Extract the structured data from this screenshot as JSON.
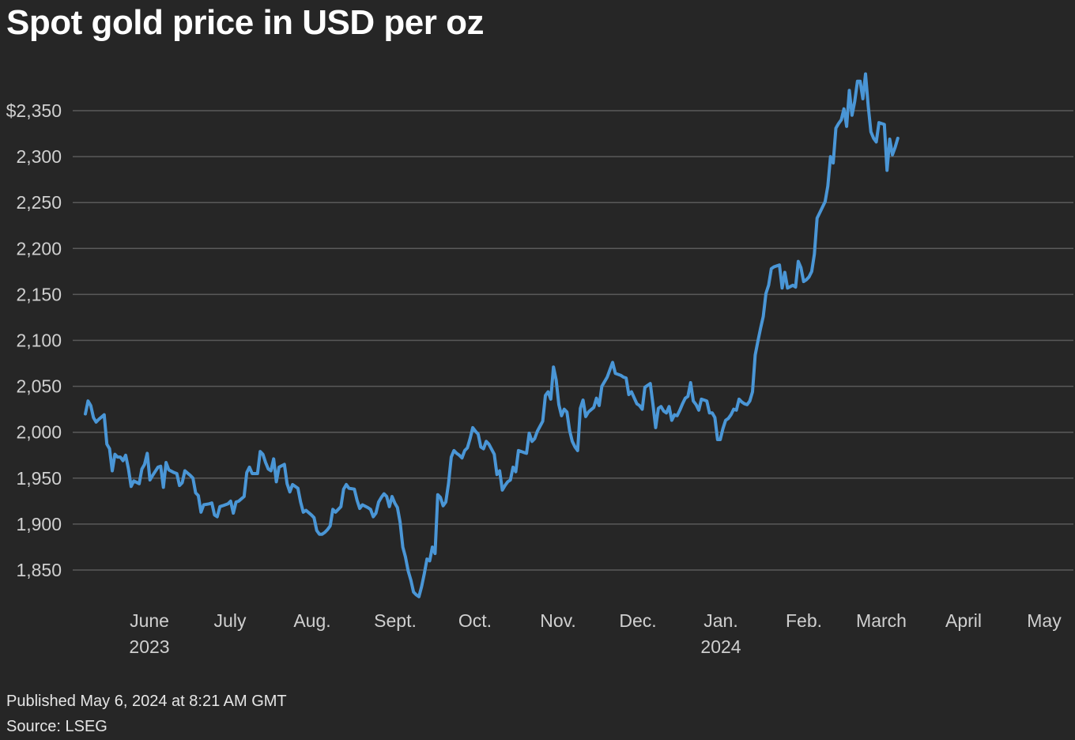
{
  "chart_data": {
    "type": "line",
    "title": "Spot gold price in USD per oz",
    "xlabel": "",
    "ylabel": "",
    "ylim": [
      1800,
      2400
    ],
    "yticks": [
      1850,
      1900,
      1950,
      2000,
      2050,
      2100,
      2150,
      2200,
      2250,
      2300,
      2350
    ],
    "ytick_labels": [
      "1,850",
      "1,900",
      "1,950",
      "2,000",
      "2,050",
      "2,100",
      "2,150",
      "2,200",
      "2,250",
      "2,300",
      "$2,350"
    ],
    "grid": true,
    "line_color": "#4a96d6",
    "xtick_labels": [
      {
        "label": "June",
        "year": "2023",
        "day_index": 22
      },
      {
        "label": "July",
        "year": "",
        "day_index": 52
      },
      {
        "label": "Aug.",
        "year": "",
        "day_index": 83
      },
      {
        "label": "Sept.",
        "year": "",
        "day_index": 114
      },
      {
        "label": "Oct.",
        "year": "",
        "day_index": 144
      },
      {
        "label": "Nov.",
        "year": "",
        "day_index": 175
      },
      {
        "label": "Dec.",
        "year": "",
        "day_index": 205
      },
      {
        "label": "Jan.",
        "year": "2024",
        "day_index": 236
      },
      {
        "label": "Feb.",
        "year": "",
        "day_index": 267
      },
      {
        "label": "March",
        "year": "",
        "day_index": 296
      },
      {
        "label": "April",
        "year": "",
        "day_index": 327
      },
      {
        "label": "May",
        "year": "",
        "day_index": 357
      }
    ],
    "x_start": "2023-05-10",
    "x_end": "2024-05-06",
    "x_range_days": [
      0,
      362
    ],
    "series": [
      {
        "name": "Spot gold",
        "points": [
          [
            0,
            2020
          ],
          [
            1,
            2034
          ],
          [
            2,
            2029
          ],
          [
            3,
            2016
          ],
          [
            4,
            2011
          ],
          [
            5,
            2014
          ],
          [
            7,
            2019
          ],
          [
            8,
            1987
          ],
          [
            9,
            1982
          ],
          [
            10,
            1958
          ],
          [
            11,
            1976
          ],
          [
            12,
            1973
          ],
          [
            13,
            1973
          ],
          [
            14,
            1969
          ],
          [
            15,
            1975
          ],
          [
            16,
            1960
          ],
          [
            17,
            1941
          ],
          [
            18,
            1947
          ],
          [
            20,
            1944
          ],
          [
            21,
            1960
          ],
          [
            22,
            1965
          ],
          [
            23,
            1977
          ],
          [
            24,
            1948
          ],
          [
            25,
            1953
          ],
          [
            27,
            1962
          ],
          [
            28,
            1963
          ],
          [
            29,
            1940
          ],
          [
            30,
            1967
          ],
          [
            31,
            1959
          ],
          [
            33,
            1956
          ],
          [
            34,
            1955
          ],
          [
            35,
            1942
          ],
          [
            36,
            1945
          ],
          [
            37,
            1958
          ],
          [
            39,
            1953
          ],
          [
            40,
            1950
          ],
          [
            41,
            1934
          ],
          [
            42,
            1931
          ],
          [
            43,
            1913
          ],
          [
            44,
            1921
          ],
          [
            46,
            1922
          ],
          [
            47,
            1923
          ],
          [
            48,
            1910
          ],
          [
            49,
            1908
          ],
          [
            50,
            1919
          ],
          [
            51,
            1920
          ],
          [
            53,
            1922
          ],
          [
            54,
            1925
          ],
          [
            55,
            1912
          ],
          [
            56,
            1924
          ],
          [
            57,
            1925
          ],
          [
            59,
            1930
          ],
          [
            60,
            1956
          ],
          [
            61,
            1962
          ],
          [
            62,
            1955
          ],
          [
            64,
            1955
          ],
          [
            65,
            1979
          ],
          [
            66,
            1976
          ],
          [
            67,
            1967
          ],
          [
            68,
            1960
          ],
          [
            69,
            1958
          ],
          [
            70,
            1971
          ],
          [
            71,
            1946
          ],
          [
            72,
            1962
          ],
          [
            74,
            1965
          ],
          [
            75,
            1944
          ],
          [
            76,
            1935
          ],
          [
            77,
            1943
          ],
          [
            79,
            1939
          ],
          [
            80,
            1924
          ],
          [
            81,
            1913
          ],
          [
            82,
            1915
          ],
          [
            84,
            1910
          ],
          [
            85,
            1907
          ],
          [
            86,
            1893
          ],
          [
            87,
            1889
          ],
          [
            88,
            1889
          ],
          [
            89,
            1891
          ],
          [
            90,
            1894
          ],
          [
            91,
            1898
          ],
          [
            92,
            1916
          ],
          [
            93,
            1913
          ],
          [
            95,
            1919
          ],
          [
            96,
            1938
          ],
          [
            97,
            1943
          ],
          [
            98,
            1939
          ],
          [
            100,
            1938
          ],
          [
            101,
            1926
          ],
          [
            102,
            1917
          ],
          [
            103,
            1921
          ],
          [
            105,
            1918
          ],
          [
            106,
            1916
          ],
          [
            107,
            1908
          ],
          [
            108,
            1912
          ],
          [
            109,
            1924
          ],
          [
            110,
            1929
          ],
          [
            111,
            1933
          ],
          [
            112,
            1930
          ],
          [
            113,
            1919
          ],
          [
            114,
            1930
          ],
          [
            115,
            1923
          ],
          [
            116,
            1918
          ],
          [
            117,
            1902
          ],
          [
            118,
            1875
          ],
          [
            119,
            1864
          ],
          [
            120,
            1849
          ],
          [
            121,
            1839
          ],
          [
            122,
            1826
          ],
          [
            123,
            1823
          ],
          [
            124,
            1821
          ],
          [
            125,
            1832
          ],
          [
            126,
            1846
          ],
          [
            127,
            1862
          ],
          [
            128,
            1860
          ],
          [
            129,
            1875
          ],
          [
            130,
            1868
          ],
          [
            131,
            1932
          ],
          [
            132,
            1929
          ],
          [
            133,
            1920
          ],
          [
            134,
            1924
          ],
          [
            135,
            1944
          ],
          [
            136,
            1973
          ],
          [
            137,
            1980
          ],
          [
            138,
            1977
          ],
          [
            139,
            1975
          ],
          [
            140,
            1972
          ],
          [
            141,
            1980
          ],
          [
            142,
            1983
          ],
          [
            143,
            1993
          ],
          [
            144,
            2005
          ],
          [
            145,
            2001
          ],
          [
            146,
            1998
          ],
          [
            147,
            1984
          ],
          [
            148,
            1982
          ],
          [
            149,
            1990
          ],
          [
            150,
            1987
          ],
          [
            152,
            1976
          ],
          [
            153,
            1954
          ],
          [
            154,
            1958
          ],
          [
            155,
            1937
          ],
          [
            156,
            1942
          ],
          [
            157,
            1946
          ],
          [
            158,
            1948
          ],
          [
            159,
            1962
          ],
          [
            160,
            1957
          ],
          [
            161,
            1980
          ],
          [
            163,
            1978
          ],
          [
            164,
            1977
          ],
          [
            165,
            1999
          ],
          [
            166,
            1990
          ],
          [
            167,
            1993
          ],
          [
            168,
            2001
          ],
          [
            170,
            2012
          ],
          [
            171,
            2040
          ],
          [
            172,
            2044
          ],
          [
            173,
            2036
          ],
          [
            174,
            2071
          ],
          [
            175,
            2057
          ],
          [
            176,
            2030
          ],
          [
            177,
            2018
          ],
          [
            178,
            2025
          ],
          [
            179,
            2022
          ],
          [
            180,
            2002
          ],
          [
            181,
            1990
          ],
          [
            182,
            1984
          ],
          [
            183,
            1980
          ],
          [
            184,
            2026
          ],
          [
            185,
            2035
          ],
          [
            186,
            2017
          ],
          [
            187,
            2022
          ],
          [
            189,
            2027
          ],
          [
            190,
            2037
          ],
          [
            191,
            2029
          ],
          [
            192,
            2050
          ],
          [
            194,
            2060
          ],
          [
            195,
            2068
          ],
          [
            196,
            2076
          ],
          [
            197,
            2064
          ],
          [
            198,
            2063
          ],
          [
            199,
            2062
          ],
          [
            200,
            2060
          ],
          [
            201,
            2059
          ],
          [
            202,
            2041
          ],
          [
            203,
            2044
          ],
          [
            205,
            2031
          ],
          [
            206,
            2029
          ],
          [
            207,
            2025
          ],
          [
            208,
            2049
          ],
          [
            210,
            2053
          ],
          [
            211,
            2030
          ],
          [
            212,
            2005
          ],
          [
            213,
            2026
          ],
          [
            214,
            2028
          ],
          [
            215,
            2023
          ],
          [
            216,
            2021
          ],
          [
            217,
            2028
          ],
          [
            218,
            2013
          ],
          [
            219,
            2019
          ],
          [
            220,
            2018
          ],
          [
            221,
            2024
          ],
          [
            222,
            2031
          ],
          [
            223,
            2037
          ],
          [
            224,
            2039
          ],
          [
            225,
            2054
          ],
          [
            226,
            2034
          ],
          [
            227,
            2030
          ],
          [
            228,
            2024
          ],
          [
            229,
            2036
          ],
          [
            230,
            2035
          ],
          [
            231,
            2034
          ],
          [
            232,
            2021
          ],
          [
            233,
            2021
          ],
          [
            234,
            2016
          ],
          [
            235,
            1992
          ],
          [
            236,
            1992
          ],
          [
            237,
            2004
          ],
          [
            238,
            2013
          ],
          [
            239,
            2015
          ],
          [
            240,
            2019
          ],
          [
            241,
            2025
          ],
          [
            242,
            2024
          ],
          [
            243,
            2036
          ],
          [
            244,
            2033
          ],
          [
            245,
            2031
          ],
          [
            246,
            2030
          ],
          [
            247,
            2034
          ],
          [
            248,
            2044
          ],
          [
            249,
            2084
          ],
          [
            250,
            2099
          ],
          [
            251,
            2113
          ],
          [
            252,
            2126
          ],
          [
            253,
            2151
          ],
          [
            254,
            2160
          ],
          [
            255,
            2178
          ],
          [
            256,
            2180
          ],
          [
            258,
            2182
          ],
          [
            259,
            2157
          ],
          [
            260,
            2174
          ],
          [
            261,
            2157
          ],
          [
            263,
            2160
          ],
          [
            264,
            2158
          ],
          [
            265,
            2186
          ],
          [
            266,
            2179
          ],
          [
            267,
            2164
          ],
          [
            268,
            2166
          ],
          [
            269,
            2169
          ],
          [
            270,
            2175
          ],
          [
            271,
            2194
          ],
          [
            272,
            2233
          ],
          [
            273,
            2239
          ],
          [
            274,
            2245
          ],
          [
            275,
            2251
          ],
          [
            276,
            2268
          ],
          [
            277,
            2300
          ],
          [
            278,
            2293
          ],
          [
            279,
            2331
          ],
          [
            280,
            2336
          ],
          [
            281,
            2340
          ],
          [
            282,
            2352
          ],
          [
            283,
            2333
          ],
          [
            284,
            2372
          ],
          [
            285,
            2345
          ],
          [
            286,
            2360
          ],
          [
            287,
            2382
          ],
          [
            288,
            2382
          ],
          [
            289,
            2363
          ],
          [
            290,
            2390
          ],
          [
            291,
            2355
          ],
          [
            292,
            2327
          ],
          [
            293,
            2320
          ],
          [
            294,
            2316
          ],
          [
            295,
            2337
          ],
          [
            296,
            2336
          ],
          [
            297,
            2335
          ],
          [
            298,
            2285
          ],
          [
            299,
            2319
          ],
          [
            300,
            2302
          ],
          [
            301,
            2310
          ],
          [
            302,
            2320
          ]
        ]
      }
    ]
  },
  "footer": {
    "published": "Published May 6, 2024 at 8:21 AM GMT",
    "source": "Source: LSEG"
  }
}
